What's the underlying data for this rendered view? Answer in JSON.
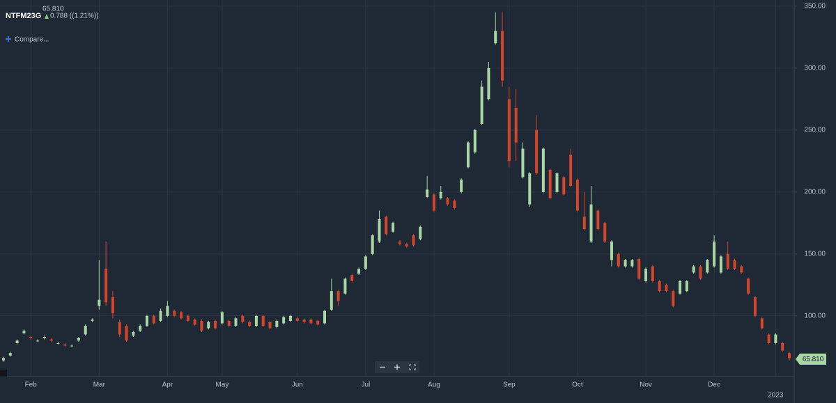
{
  "header": {
    "symbol": "NTFM23G",
    "price": "65.810",
    "change": "0.788 ((1.21%))",
    "compare": "Compare..."
  },
  "chart_data": {
    "type": "candlestick",
    "categories": [
      null,
      null,
      null,
      null,
      "Feb",
      null,
      null,
      null,
      null,
      null,
      null,
      null,
      null,
      null,
      "Mar",
      null,
      null,
      null,
      null,
      null,
      null,
      null,
      null,
      null,
      "Apr",
      null,
      null,
      null,
      null,
      null,
      null,
      null,
      "May",
      null,
      null,
      null,
      null,
      null,
      null,
      null,
      null,
      null,
      null,
      "Jun",
      null,
      null,
      null,
      null,
      null,
      null,
      null,
      null,
      null,
      "Jul",
      null,
      null,
      null,
      null,
      null,
      null,
      null,
      null,
      null,
      "Aug",
      null,
      null,
      null,
      null,
      null,
      null,
      null,
      null,
      null,
      null,
      "Sep",
      null,
      null,
      null,
      null,
      null,
      null,
      null,
      null,
      null,
      "Oct",
      null,
      null,
      null,
      null,
      null,
      null,
      null,
      null,
      null,
      "Nov",
      null,
      null,
      null,
      null,
      null,
      null,
      null,
      null,
      null,
      "Dec",
      null,
      null,
      null,
      null,
      null,
      null,
      null,
      null,
      "2023",
      null,
      null
    ],
    "open": [
      64,
      68,
      78,
      86,
      83,
      80,
      82,
      81,
      78,
      77,
      76,
      80,
      85,
      96,
      108,
      138,
      115,
      95,
      92,
      84,
      88,
      92,
      100,
      96,
      100,
      104,
      103,
      100,
      97,
      96,
      90,
      96,
      94,
      96,
      92,
      100,
      95,
      92,
      100,
      95,
      91,
      94,
      96,
      98,
      97,
      97,
      96,
      94,
      105,
      120,
      118,
      133,
      134,
      138,
      150,
      160,
      180,
      168,
      160,
      158,
      165,
      162,
      196,
      198,
      195,
      195,
      193,
      200,
      220,
      232,
      255,
      275,
      320,
      330,
      275,
      268,
      212,
      190,
      250,
      200,
      218,
      200,
      212,
      230,
      210,
      180,
      160,
      185,
      175,
      145,
      150,
      140,
      140,
      146,
      128,
      140,
      128,
      125,
      120,
      118,
      120,
      135,
      140,
      135,
      140,
      135,
      150,
      145,
      140,
      130,
      115,
      98,
      85,
      78,
      78,
      70
    ],
    "high": [
      67,
      71,
      81,
      89,
      84,
      81,
      84,
      82,
      79,
      78,
      77,
      83,
      93,
      98,
      145,
      160,
      120,
      97,
      93,
      88,
      93,
      101,
      101,
      106,
      112,
      105,
      104,
      101,
      98,
      97,
      96,
      97,
      104,
      97,
      99,
      101,
      96,
      101,
      101,
      96,
      97,
      100,
      101,
      99,
      98,
      98,
      97,
      105,
      130,
      121,
      131,
      134,
      139,
      149,
      166,
      185,
      181,
      176,
      161,
      159,
      166,
      173,
      213,
      199,
      205,
      196,
      194,
      211,
      241,
      251,
      290,
      305,
      345,
      345,
      285,
      283,
      240,
      216,
      262,
      236,
      219,
      216,
      213,
      235,
      211,
      200,
      205,
      186,
      176,
      161,
      151,
      146,
      146,
      147,
      139,
      141,
      129,
      126,
      121,
      129,
      129,
      141,
      141,
      146,
      165,
      149,
      160,
      146,
      141,
      131,
      116,
      99,
      86,
      86,
      79,
      71
    ],
    "low": [
      63,
      67,
      77,
      85,
      81,
      79,
      81,
      79,
      77,
      75,
      75,
      79,
      84,
      95,
      105,
      108,
      98,
      83,
      79,
      83,
      87,
      91,
      93,
      95,
      99,
      99,
      97,
      95,
      92,
      87,
      89,
      89,
      93,
      91,
      91,
      94,
      91,
      91,
      91,
      89,
      90,
      93,
      95,
      95,
      94,
      93,
      92,
      93,
      104,
      108,
      117,
      127,
      133,
      137,
      149,
      159,
      165,
      167,
      157,
      155,
      156,
      161,
      195,
      184,
      194,
      189,
      186,
      199,
      219,
      231,
      254,
      274,
      319,
      285,
      220,
      225,
      211,
      188,
      214,
      199,
      194,
      199,
      197,
      204,
      184,
      169,
      159,
      169,
      159,
      140,
      139,
      139,
      139,
      129,
      127,
      127,
      119,
      119,
      107,
      117,
      119,
      134,
      129,
      134,
      139,
      134,
      137,
      137,
      134,
      117,
      99,
      89,
      77,
      77,
      71,
      64
    ],
    "close": [
      66,
      70,
      80,
      88,
      82,
      80,
      83,
      80,
      78,
      76,
      76,
      82,
      92,
      97,
      113,
      111,
      102,
      85,
      80,
      87,
      92,
      100,
      94,
      104,
      108,
      100,
      98,
      96,
      93,
      88,
      95,
      90,
      103,
      92,
      98,
      95,
      92,
      100,
      92,
      90,
      96,
      99,
      100,
      96,
      95,
      94,
      93,
      104,
      120,
      112,
      130,
      128,
      138,
      148,
      165,
      178,
      166,
      175,
      158,
      156,
      157,
      172,
      202,
      185,
      200,
      190,
      187,
      210,
      240,
      250,
      285,
      300,
      330,
      290,
      225,
      240,
      235,
      215,
      215,
      235,
      195,
      215,
      198,
      205,
      185,
      170,
      190,
      170,
      160,
      160,
      140,
      145,
      145,
      130,
      138,
      128,
      120,
      120,
      108,
      128,
      128,
      140,
      130,
      145,
      160,
      148,
      138,
      138,
      135,
      118,
      100,
      90,
      78,
      85,
      72,
      65.81
    ],
    "up_color": "#a9d6a3",
    "down_color": "#d4452b",
    "ylim": [
      51,
      355
    ],
    "yticks": [
      {
        "value": 100,
        "label": "100.00"
      },
      {
        "value": 150,
        "label": "150.00"
      },
      {
        "value": 200,
        "label": "200.00"
      },
      {
        "value": 250,
        "label": "250.00"
      },
      {
        "value": 300,
        "label": "300.00"
      },
      {
        "value": 350,
        "label": "350.00"
      }
    ],
    "grid": true,
    "last_price_label": "65.810"
  }
}
